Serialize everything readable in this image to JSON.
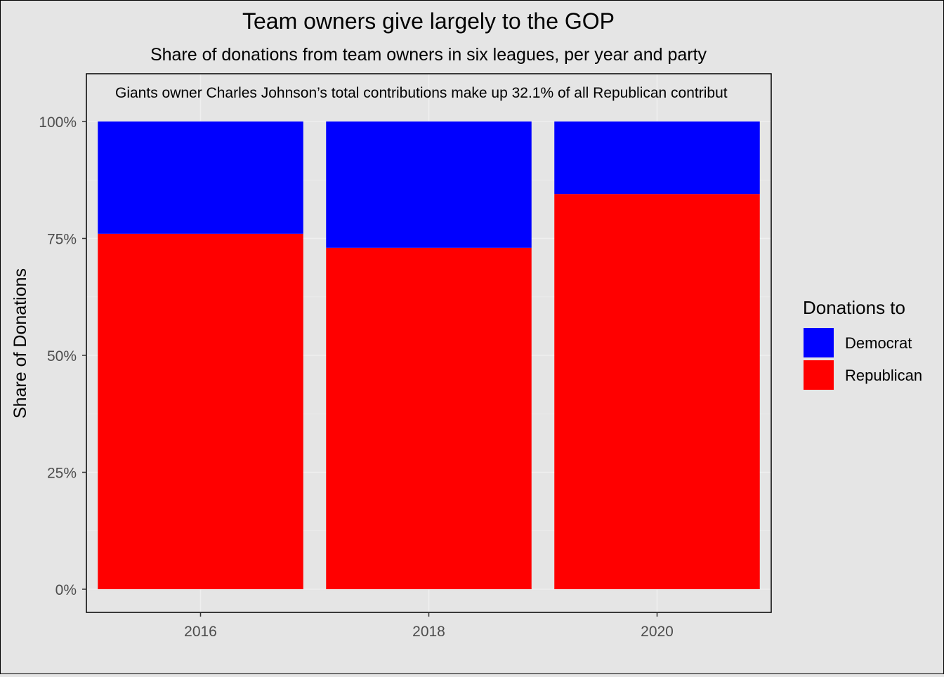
{
  "chart_data": {
    "type": "bar",
    "stacked": true,
    "title": "Team owners give largely to the GOP",
    "subtitle": "Share of donations from team owners in six leagues, per year and party",
    "annotation": "Giants owner Charles Johnson’s total contributions make up 32.1% of all Republican contribut",
    "xlabel": "",
    "ylabel": "Share of Donations",
    "ylim": [
      0,
      1.1
    ],
    "yticks": [
      0,
      0.25,
      0.5,
      0.75,
      1.0
    ],
    "ytick_labels": [
      "0%",
      "25%",
      "50%",
      "75%",
      "100%"
    ],
    "categories": [
      "2016",
      "2018",
      "2020"
    ],
    "series": [
      {
        "name": "Republican",
        "color": "#ff0000",
        "values": [
          0.76,
          0.73,
          0.845
        ]
      },
      {
        "name": "Democrat",
        "color": "#0000ff",
        "values": [
          0.24,
          0.27,
          0.155
        ]
      }
    ],
    "legend": {
      "title": "Donations to",
      "position": "right",
      "entries": [
        {
          "label": "Democrat",
          "color": "#0000ff"
        },
        {
          "label": "Republican",
          "color": "#ff0000"
        }
      ]
    },
    "grid": true
  }
}
